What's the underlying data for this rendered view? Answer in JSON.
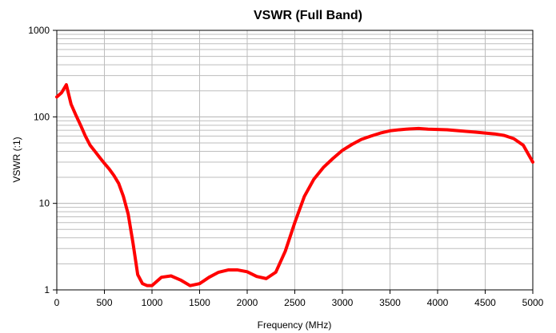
{
  "chart_data": {
    "type": "line",
    "title": "VSWR (Full Band)",
    "xlabel": "Frequency (MHz)",
    "ylabel": "VSWR (:1)",
    "xlim": [
      0,
      5000
    ],
    "ylim": [
      1,
      1000
    ],
    "yscale": "log",
    "grid": true,
    "legend": "none",
    "x_ticks": [
      "0",
      "500",
      "1000",
      "1500",
      "2000",
      "2500",
      "3000",
      "3500",
      "4000",
      "4500",
      "5000"
    ],
    "y_ticks": [
      "1",
      "10",
      "100",
      "1000"
    ],
    "series": [
      {
        "color": "#ff0000",
        "x": [
          0,
          50,
          100,
          150,
          200,
          250,
          300,
          350,
          400,
          450,
          500,
          550,
          600,
          650,
          700,
          750,
          800,
          850,
          900,
          950,
          1000,
          1100,
          1200,
          1300,
          1400,
          1500,
          1600,
          1700,
          1800,
          1900,
          2000,
          2100,
          2200,
          2300,
          2400,
          2500,
          2600,
          2700,
          2800,
          2900,
          3000,
          3100,
          3200,
          3300,
          3400,
          3500,
          3600,
          3700,
          3800,
          3900,
          4000,
          4100,
          4200,
          4300,
          4400,
          4500,
          4600,
          4700,
          4800,
          4900,
          5000
        ],
        "y": [
          170,
          190,
          235,
          140,
          105,
          80,
          60,
          47,
          40,
          34,
          29,
          25,
          21,
          17,
          12,
          7.5,
          3.5,
          1.5,
          1.18,
          1.12,
          1.12,
          1.4,
          1.45,
          1.3,
          1.12,
          1.18,
          1.4,
          1.6,
          1.7,
          1.7,
          1.62,
          1.43,
          1.35,
          1.6,
          2.8,
          6,
          12,
          19,
          26,
          33,
          41,
          48,
          55,
          60,
          65,
          69,
          71,
          72.5,
          73.5,
          72,
          71.5,
          71,
          69.5,
          68,
          66.5,
          65,
          63.5,
          61,
          56,
          47,
          30
        ]
      }
    ]
  }
}
